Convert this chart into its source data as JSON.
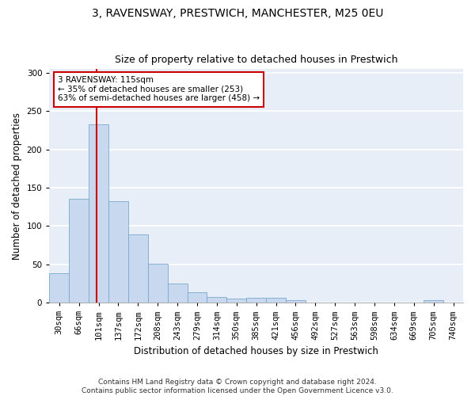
{
  "title": "3, RAVENSWAY, PRESTWICH, MANCHESTER, M25 0EU",
  "subtitle": "Size of property relative to detached houses in Prestwich",
  "xlabel": "Distribution of detached houses by size in Prestwich",
  "ylabel": "Number of detached properties",
  "bar_labels": [
    "30sqm",
    "66sqm",
    "101sqm",
    "137sqm",
    "172sqm",
    "208sqm",
    "243sqm",
    "279sqm",
    "314sqm",
    "350sqm",
    "385sqm",
    "421sqm",
    "456sqm",
    "492sqm",
    "527sqm",
    "563sqm",
    "598sqm",
    "634sqm",
    "669sqm",
    "705sqm",
    "740sqm"
  ],
  "bar_values": [
    38,
    136,
    233,
    133,
    89,
    51,
    25,
    14,
    7,
    5,
    6,
    6,
    3,
    0,
    0,
    0,
    0,
    0,
    0,
    3,
    0
  ],
  "bar_color": "#c8d8ee",
  "bar_edge_color": "#7aa8cc",
  "red_line_color": "#cc0000",
  "annotation_text": "3 RAVENSWAY: 115sqm\n← 35% of detached houses are smaller (253)\n63% of semi-detached houses are larger (458) →",
  "annotation_box_color": "#ffffff",
  "annotation_box_edge": "#cc0000",
  "ylim": [
    0,
    305
  ],
  "yticks": [
    0,
    50,
    100,
    150,
    200,
    250,
    300
  ],
  "title_fontsize": 10,
  "subtitle_fontsize": 9,
  "axis_label_fontsize": 8.5,
  "tick_fontsize": 7.5,
  "annotation_fontsize": 7.5,
  "footer_fontsize": 6.5,
  "footer_text": "Contains HM Land Registry data © Crown copyright and database right 2024.\nContains public sector information licensed under the Open Government Licence v3.0.",
  "figure_facecolor": "#ffffff",
  "axes_facecolor": "#e8eef8",
  "grid_color": "#ffffff"
}
